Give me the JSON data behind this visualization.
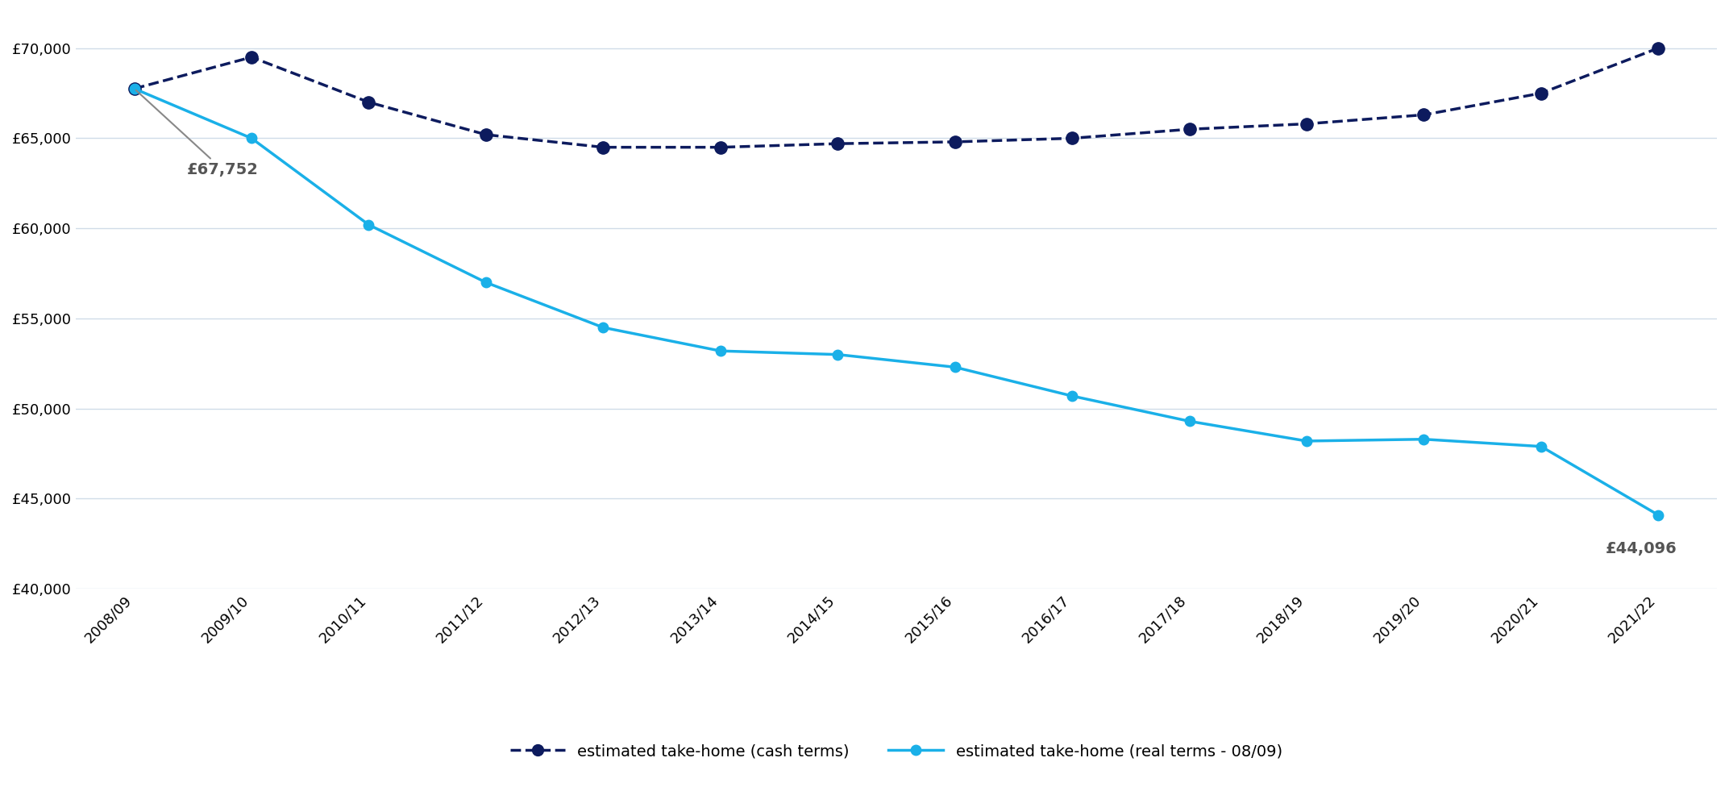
{
  "years": [
    "2008/09",
    "2009/10",
    "2010/11",
    "2011/12",
    "2012/13",
    "2013/14",
    "2014/15",
    "2015/16",
    "2016/17",
    "2017/18",
    "2018/19",
    "2019/20",
    "2020/21",
    "2021/22"
  ],
  "cash_terms": [
    67752,
    69500,
    67000,
    65200,
    64500,
    64500,
    64700,
    64800,
    65000,
    65500,
    65800,
    66300,
    67500,
    70000
  ],
  "real_terms": [
    67752,
    65000,
    60200,
    57000,
    54500,
    53200,
    53000,
    52300,
    50700,
    49300,
    48200,
    48300,
    47900,
    44096
  ],
  "cash_color": "#0d1b5e",
  "real_color": "#1ab0e8",
  "annotation_start_text": "£67,752",
  "annotation_end_text": "£44,096",
  "ylim_min": 40000,
  "ylim_max": 72000,
  "yticks": [
    40000,
    45000,
    50000,
    55000,
    60000,
    65000,
    70000
  ],
  "legend_cash": "estimated take-home (cash terms)",
  "legend_real": "estimated take-home (real terms - 08/09)",
  "bg_color": "#ffffff",
  "grid_color": "#d0dce8"
}
